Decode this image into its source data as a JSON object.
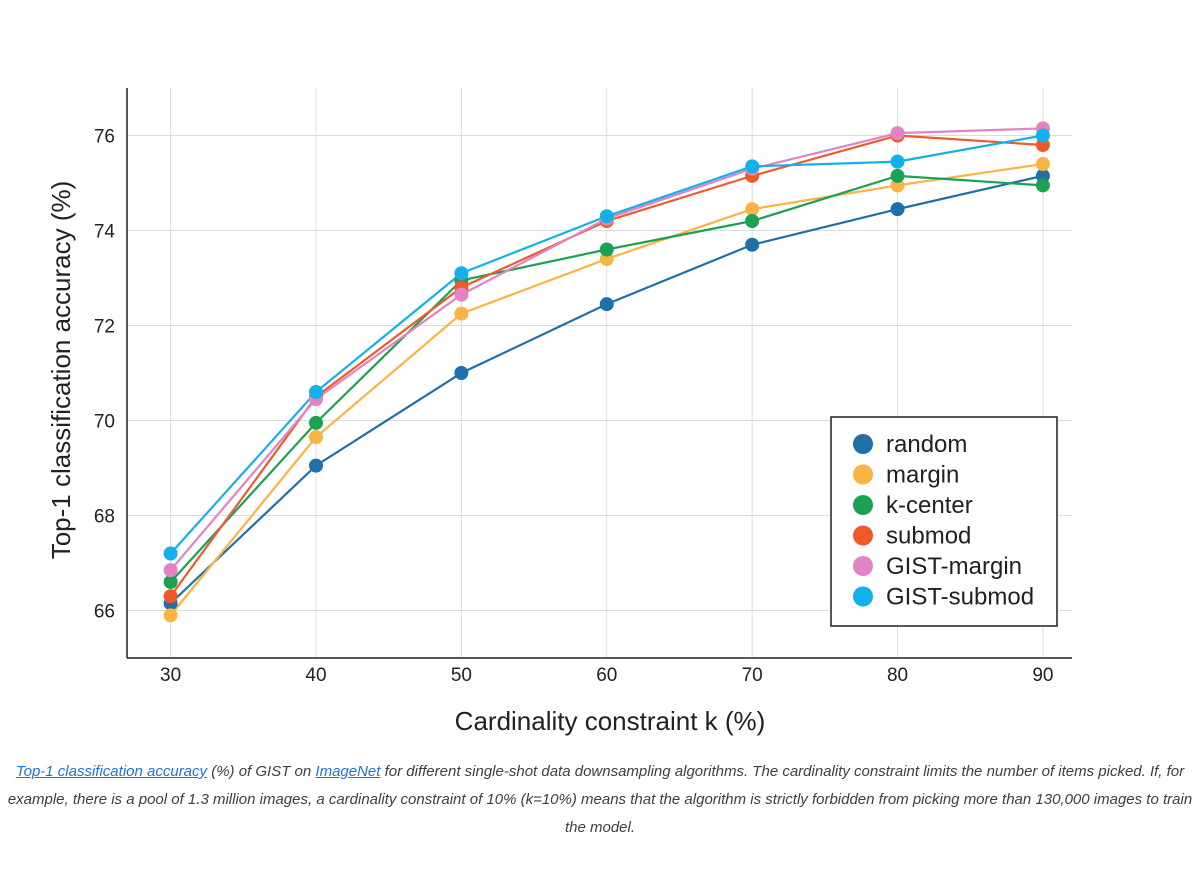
{
  "chart_data": {
    "type": "line",
    "title": "",
    "xlabel": "Cardinality constraint k (%)",
    "ylabel": "Top-1 classification accuracy (%)",
    "x": [
      30,
      40,
      50,
      60,
      70,
      80,
      90
    ],
    "xlim": [
      27,
      92
    ],
    "ylim": [
      65.0,
      77.0
    ],
    "xticks": [
      "30",
      "40",
      "50",
      "60",
      "70",
      "80",
      "90"
    ],
    "yticks": [
      "66",
      "68",
      "70",
      "72",
      "74",
      "76"
    ],
    "ytick_values": [
      66,
      68,
      70,
      72,
      74,
      76
    ],
    "grid": true,
    "legend_position": "lower-right",
    "series": [
      {
        "name": "random",
        "color": "#1f6fa8",
        "values": [
          66.15,
          69.05,
          71.0,
          72.45,
          73.7,
          74.45,
          75.15
        ]
      },
      {
        "name": "margin",
        "color": "#f9b443",
        "values": [
          65.9,
          69.65,
          72.25,
          73.4,
          74.45,
          74.95,
          75.4
        ]
      },
      {
        "name": "k-center",
        "color": "#1aa154",
        "values": [
          66.6,
          69.95,
          72.95,
          73.6,
          74.2,
          75.15,
          74.95
        ]
      },
      {
        "name": "submod",
        "color": "#ee5a2a",
        "values": [
          66.3,
          70.5,
          72.8,
          74.2,
          75.15,
          76.0,
          75.8
        ]
      },
      {
        "name": "GIST-margin",
        "color": "#e284c4",
        "values": [
          66.85,
          70.45,
          72.65,
          74.25,
          75.3,
          76.05,
          76.15
        ]
      },
      {
        "name": "GIST-submod",
        "color": "#12b1ec",
        "values": [
          67.2,
          70.6,
          73.1,
          74.3,
          75.35,
          75.45,
          76.0
        ]
      }
    ]
  },
  "caption": {
    "link1": "Top-1 classification accuracy",
    "text1": " (%) of GIST on ",
    "link2": "ImageNet",
    "text2": " for different single-shot data downsampling algorithms. The cardinality constraint limits the number of items picked. If, for example, there is a pool of 1.3 million images, a cardinality constraint of 10% (k=10%) means that the algorithm is strictly forbidden from picking more than 130,000 images to train the model."
  }
}
